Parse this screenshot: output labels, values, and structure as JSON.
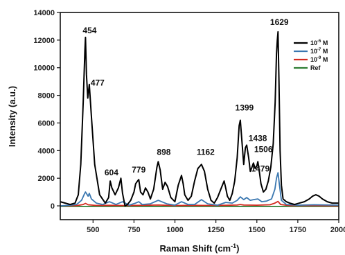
{
  "chart_data": {
    "type": "line",
    "xlabel": "Raman Shift (cm",
    "xlabel_sup": "-1",
    "xlabel_end": ")",
    "ylabel": "Intensity (a.u.)",
    "xlim": [
      300,
      2000
    ],
    "ylim": [
      -1000,
      14000
    ],
    "x_ticks": [
      500,
      750,
      1000,
      1250,
      1500,
      1750,
      2000
    ],
    "y_ticks": [
      0,
      2000,
      4000,
      6000,
      8000,
      10000,
      12000,
      14000
    ],
    "legend_position": "top-right",
    "series": [
      {
        "name_base": "10",
        "name_exp": "-5",
        "name_unit": " M",
        "color": "#000000",
        "x": [
          300,
          330,
          360,
          390,
          410,
          425,
          440,
          450,
          454,
          460,
          468,
          477,
          490,
          510,
          540,
          575,
          595,
          605,
          615,
          635,
          655,
          670,
          680,
          695,
          710,
          730,
          750,
          760,
          772,
          779,
          790,
          805,
          820,
          835,
          850,
          870,
          890,
          898,
          910,
          925,
          940,
          955,
          975,
          1000,
          1020,
          1040,
          1050,
          1060,
          1080,
          1100,
          1120,
          1140,
          1162,
          1180,
          1200,
          1220,
          1240,
          1260,
          1280,
          1300,
          1310,
          1320,
          1335,
          1350,
          1365,
          1380,
          1392,
          1399,
          1410,
          1420,
          1430,
          1438,
          1450,
          1460,
          1470,
          1479,
          1490,
          1500,
          1506,
          1515,
          1525,
          1540,
          1555,
          1570,
          1585,
          1600,
          1612,
          1620,
          1625,
          1629,
          1635,
          1642,
          1650,
          1660,
          1680,
          1700,
          1730,
          1760,
          1790,
          1820,
          1840,
          1860,
          1880,
          1900,
          1930,
          1960,
          2000
        ],
        "y": [
          300,
          200,
          100,
          200,
          800,
          3000,
          7500,
          11200,
          12200,
          9500,
          7800,
          8800,
          6500,
          3000,
          800,
          200,
          600,
          1800,
          1300,
          800,
          1300,
          2000,
          900,
          0,
          100,
          400,
          1000,
          1600,
          1800,
          1900,
          1000,
          800,
          1300,
          1000,
          500,
          1200,
          2800,
          3200,
          2600,
          1200,
          1700,
          1400,
          600,
          300,
          1500,
          2200,
          1600,
          800,
          400,
          700,
          1800,
          2700,
          3000,
          2500,
          1200,
          400,
          200,
          600,
          1200,
          1800,
          1300,
          700,
          400,
          900,
          1800,
          3500,
          5800,
          6200,
          4500,
          3000,
          4200,
          4400,
          3500,
          2500,
          2800,
          3100,
          2700,
          2900,
          3200,
          2500,
          1600,
          1000,
          1200,
          1800,
          2800,
          4500,
          7500,
          11000,
          12000,
          12600,
          9000,
          4000,
          1500,
          500,
          300,
          200,
          100,
          200,
          300,
          500,
          700,
          800,
          700,
          500,
          300,
          200,
          200
        ]
      },
      {
        "name_base": "10",
        "name_exp": "-7",
        "name_unit": " M",
        "color": "#3a77b0",
        "x": [
          300,
          360,
          400,
          430,
          445,
          454,
          462,
          470,
          477,
          490,
          520,
          560,
          600,
          640,
          680,
          720,
          760,
          779,
          800,
          850,
          898,
          950,
          1000,
          1040,
          1080,
          1120,
          1162,
          1200,
          1260,
          1310,
          1350,
          1380,
          1399,
          1420,
          1438,
          1460,
          1479,
          1506,
          1530,
          1560,
          1590,
          1610,
          1620,
          1629,
          1638,
          1650,
          1680,
          1750,
          1850,
          2000
        ],
        "y": [
          0,
          50,
          100,
          400,
          800,
          1000,
          850,
          700,
          900,
          500,
          200,
          100,
          300,
          100,
          300,
          50,
          200,
          300,
          100,
          150,
          400,
          150,
          50,
          300,
          100,
          100,
          450,
          150,
          50,
          250,
          200,
          400,
          650,
          450,
          600,
          400,
          450,
          500,
          300,
          350,
          500,
          1200,
          2000,
          2400,
          1500,
          400,
          100,
          50,
          80,
          50
        ]
      },
      {
        "name_base": "10",
        "name_exp": "-9",
        "name_unit": " M",
        "color": "#d42a1f",
        "x": [
          300,
          400,
          440,
          454,
          470,
          520,
          600,
          700,
          800,
          900,
          1000,
          1100,
          1200,
          1300,
          1380,
          1399,
          1420,
          1500,
          1580,
          1610,
          1629,
          1645,
          1700,
          1850,
          2000
        ],
        "y": [
          0,
          20,
          100,
          180,
          80,
          30,
          40,
          20,
          40,
          60,
          20,
          40,
          30,
          40,
          60,
          100,
          60,
          50,
          80,
          200,
          320,
          100,
          20,
          20,
          0
        ]
      },
      {
        "name_base": "Ref",
        "name_exp": "",
        "name_unit": "",
        "color": "#2e7d32",
        "x": [
          300,
          2000
        ],
        "y": [
          -40,
          -40
        ]
      }
    ],
    "annotations": [
      {
        "text": "454",
        "x": 454,
        "y": 12200,
        "color": "#111111"
      },
      {
        "text": "477",
        "x": 477,
        "y": 8800,
        "color": "#111111"
      },
      {
        "text": "604",
        "x": 604,
        "y": 1800,
        "color": "#777777"
      },
      {
        "text": "779",
        "x": 779,
        "y": 1900,
        "color": "#111111"
      },
      {
        "text": "898",
        "x": 898,
        "y": 3200,
        "color": "#111111"
      },
      {
        "text": "1162",
        "x": 1162,
        "y": 3000,
        "color": "#111111"
      },
      {
        "text": "1399",
        "x": 1399,
        "y": 6200,
        "color": "#111111"
      },
      {
        "text": "1438",
        "x": 1438,
        "y": 4400,
        "color": "#111111"
      },
      {
        "text": "1506",
        "x": 1506,
        "y": 3200,
        "color": "#111111"
      },
      {
        "text": "1479",
        "x": 1479,
        "y": 3100,
        "color": "#111111"
      },
      {
        "text": "1629",
        "x": 1629,
        "y": 12600,
        "color": "#111111"
      }
    ]
  }
}
